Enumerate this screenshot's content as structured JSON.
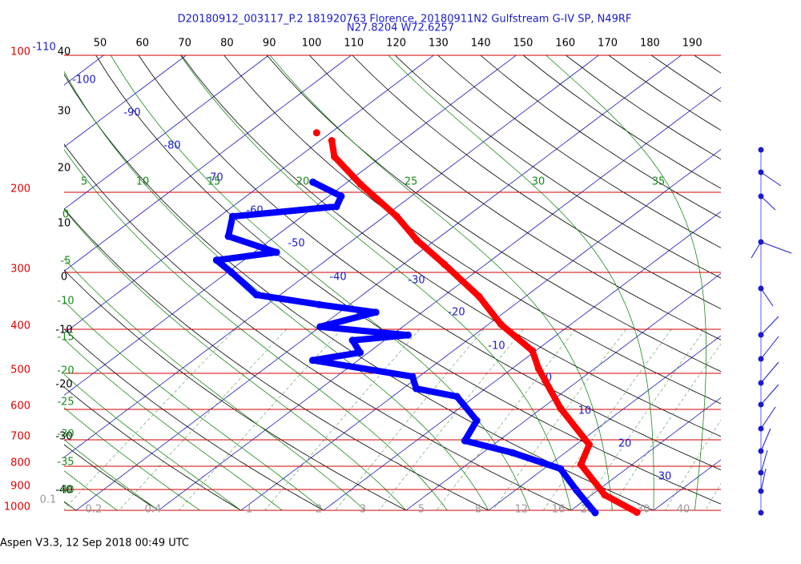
{
  "title": "D20180912_003117_P.2 181920763 Florence, 20180911N2 Gulfstream G-IV SP, N49RF",
  "subtitle": "N27.8204 W72.6257",
  "footer": "Aspen V3.3, 12 Sep 2018  00:49 UTC",
  "pressure_levels": [
    100,
    200,
    300,
    400,
    500,
    600,
    700,
    800,
    900,
    1000
  ],
  "isotherm_labels": [
    -110,
    -100,
    -90,
    -80,
    -70,
    -60,
    -50,
    -40,
    -30,
    -20,
    -10,
    0,
    10,
    20,
    30
  ],
  "dry_adiabat_top_labels": [
    50,
    60,
    70,
    80,
    90,
    100,
    110,
    120,
    130,
    140,
    150,
    160,
    170,
    180,
    190
  ],
  "dry_adiabat_left_labels": [
    40,
    30,
    20,
    10,
    0,
    -10,
    -20,
    -30,
    -40
  ],
  "moist_adiabat_top_labels": [
    5,
    10,
    15,
    20,
    25,
    30,
    35
  ],
  "moist_adiabat_left_labels": [
    0,
    -5,
    -10,
    -15,
    -20,
    -25,
    -30,
    -35,
    -40
  ],
  "mixing_ratio_labels": [
    0.1,
    0.2,
    0.4,
    1,
    2,
    3,
    5,
    8,
    12,
    16,
    20,
    30,
    40
  ],
  "temperature_profile": {
    "color": "#ff0000",
    "pressure": [
      148,
      null,
      154,
      167,
      192,
      226,
      255,
      288,
      339,
      390,
      446,
      488,
      518,
      597,
      717,
      793,
      925,
      1010
    ],
    "temperature": [
      -71.7,
      null,
      -68.6,
      -65.7,
      -58.1,
      -48.5,
      -42.2,
      -35.0,
      -25.6,
      -18.5,
      -10.4,
      -6.8,
      -4.1,
      2.3,
      11.6,
      13.8,
      21.6,
      28.3
    ]
  },
  "dewpoint_profile": {
    "color": "#0000ff",
    "pressure": [
      190,
      204,
      215,
      226,
      250,
      271,
      282,
      300,
      336,
      353,
      367,
      395,
      412,
      423,
      450,
      468,
      508,
      540,
      562,
      635,
      703,
      747,
      810,
      903,
      1012
    ],
    "temperature": [
      -64.2,
      -58.5,
      -57.4,
      -68.4,
      -65.7,
      -57.3,
      -63.3,
      -59.5,
      -52.9,
      -43.7,
      -35.6,
      -40.0,
      -28.0,
      -33.9,
      -31.0,
      -35.5,
      -20.8,
      -18.4,
      -12.2,
      -5.9,
      -4.1,
      3.6,
      12.0,
      17.4,
      23.3
    ]
  }
}
